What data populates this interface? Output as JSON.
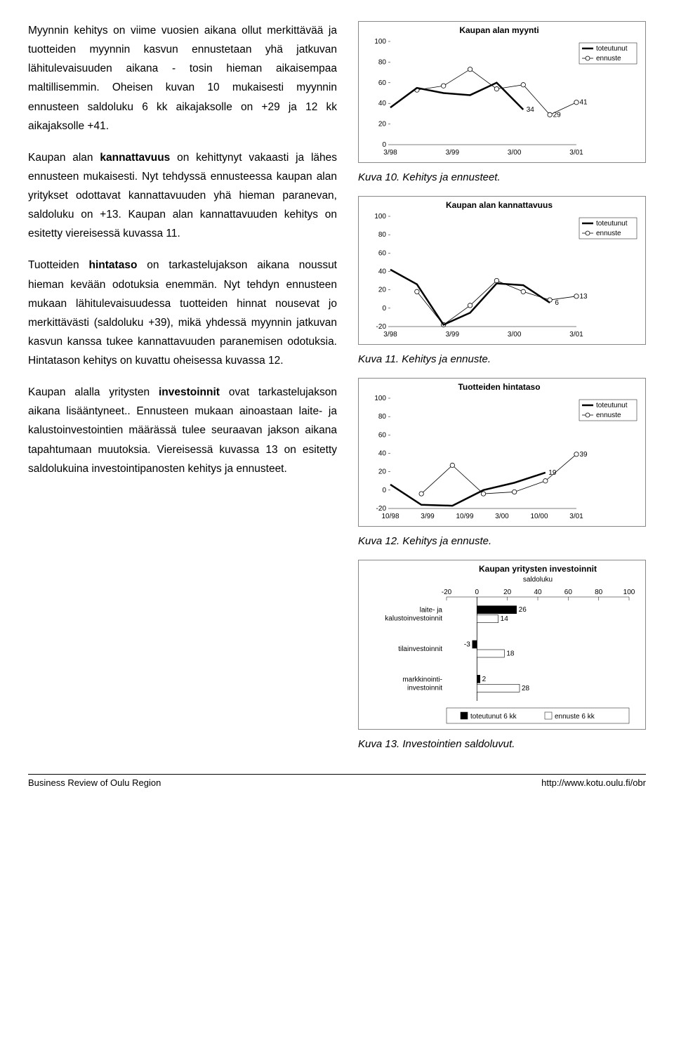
{
  "para1": "Myynnin kehitys on viime vuosien aikana ollut merkittävää ja tuotteiden myynnin kasvun ennustetaan yhä jatkuvan lähitulevaisuuden aikana - tosin hieman aikaisempaa maltillisemmin. Oheisen kuvan 10 mukaisesti myynnin ennusteen saldoluku 6 kk aikajaksolle on +29 ja 12 kk aikajaksolle +41.",
  "para2_a": "Kaupan alan ",
  "para2_b": "kannattavuus",
  "para2_c": " on kehittynyt vakaasti ja lähes ennusteen mukaisesti. Nyt tehdyssä ennusteessa kaupan alan yritykset odottavat kannattavuuden yhä hieman paranevan, saldoluku on +13. Kaupan alan kannattavuuden kehitys on esitetty viereisessä kuvassa 11.",
  "para3_a": "Tuotteiden ",
  "para3_b": "hintataso",
  "para3_c": " on tarkastelujakson aikana noussut hieman kevään odotuksia enemmän. Nyt tehdyn ennusteen mukaan lähitulevaisuudessa tuotteiden hinnat nousevat jo merkittävästi (saldoluku +39), mikä yhdessä myynnin jatkuvan kasvun kanssa tukee kannattavuuden paranemisen odotuksia. Hintatason kehitys on kuvattu oheisessa kuvassa 12.",
  "para4_a": "Kaupan alalla yritysten ",
  "para4_b": "investoinnit",
  "para4_c": " ovat tarkastelujakson aikana lisääntyneet.. Ennusteen mukaan ainoastaan laite- ja kalustoinvestointien määrässä tulee seuraavan jakson aikana tapahtumaan muutoksia. Viereisessä kuvassa 13 on esitetty saldolukuina investointipanosten kehitys ja ennusteet.",
  "chart10": {
    "title": "Kaupan alan myynti",
    "caption": "Kuva 10. Kehitys ja ennusteet.",
    "x_labels": [
      "3/98",
      "3/99",
      "3/00",
      "3/01"
    ],
    "y_ticks": [
      0,
      20,
      40,
      60,
      80,
      100
    ],
    "series_tote": {
      "label": "toteutunut",
      "values": [
        36,
        55,
        50,
        48,
        60,
        34
      ],
      "color": "#000000",
      "width": 2.5,
      "marker": null
    },
    "series_enn": {
      "label": "ennuste",
      "values": [
        null,
        53,
        57,
        73,
        54,
        58,
        29,
        41
      ],
      "color": "#000000",
      "width": 0.8,
      "marker": "circle"
    },
    "ann": [
      {
        "i": 5,
        "v": 34,
        "t": "34"
      },
      {
        "i": 6,
        "v": 29,
        "t": "29"
      },
      {
        "i": 7,
        "v": 41,
        "t": "41"
      }
    ]
  },
  "chart11": {
    "title": "Kaupan alan kannattavuus",
    "caption": "Kuva 11. Kehitys ja ennuste.",
    "x_labels": [
      "3/98",
      "3/99",
      "3/00",
      "3/01"
    ],
    "y_ticks": [
      -20,
      0,
      20,
      40,
      60,
      80,
      100
    ],
    "series_tote": {
      "label": "toteutunut",
      "values": [
        42,
        26,
        -18,
        -5,
        27,
        25,
        6
      ],
      "color": "#000000",
      "width": 2.5,
      "marker": null
    },
    "series_enn": {
      "label": "ennuste",
      "values": [
        null,
        18,
        -18,
        3,
        30,
        18,
        9,
        13
      ],
      "color": "#000000",
      "width": 0.8,
      "marker": "circle"
    },
    "ann": [
      {
        "i": 6,
        "v": 6,
        "t": "6"
      },
      {
        "i": 7,
        "v": 13,
        "t": "13"
      }
    ]
  },
  "chart12": {
    "title": "Tuotteiden hintataso",
    "caption": "Kuva 12. Kehitys ja ennuste.",
    "x_labels": [
      "10/98",
      "3/99",
      "10/99",
      "3/00",
      "10/00",
      "3/01"
    ],
    "y_ticks": [
      -20,
      0,
      20,
      40,
      60,
      80,
      100
    ],
    "series_tote": {
      "label": "toteutunut",
      "values": [
        6,
        -16,
        -17,
        0,
        8,
        19
      ],
      "color": "#000000",
      "width": 2.5,
      "marker": null
    },
    "series_enn": {
      "label": "ennuste",
      "values": [
        null,
        -4,
        27,
        -4,
        -2,
        10,
        39
      ],
      "color": "#000000",
      "width": 0.8,
      "marker": "circle"
    },
    "ann": [
      {
        "i": 5,
        "v": 19,
        "t": "19"
      },
      {
        "i": 6,
        "v": 39,
        "t": "39"
      }
    ]
  },
  "chart13": {
    "title": "Kaupan yritysten investoinnit",
    "subtitle": "saldoluku",
    "caption": "Kuva 13. Investointien saldoluvut.",
    "x_ticks": [
      -20,
      0,
      20,
      40,
      60,
      80,
      100
    ],
    "categories": [
      "laite- ja kalustoinvestoinnit",
      "tilainvestoinnit",
      "markkinointi-investoinnit"
    ],
    "tote": {
      "label": "toteutunut 6 kk",
      "values": [
        26,
        -3,
        2
      ],
      "color": "#000000"
    },
    "enn": {
      "label": "ennuste 6 kk",
      "values": [
        14,
        18,
        28
      ],
      "color": "#ffffff"
    }
  },
  "footer_left": "Business Review of Oulu Region",
  "footer_right": "http://www.kotu.oulu.fi/obr"
}
